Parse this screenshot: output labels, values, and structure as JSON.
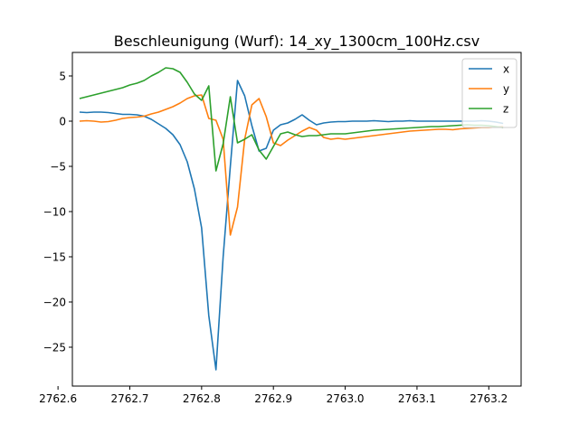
{
  "chart_data": {
    "type": "line",
    "title": "Beschleunigung (Wurf): 14_xy_1300cm_100Hz.csv",
    "xlabel": "",
    "ylabel": "",
    "xlim": [
      2762.62,
      2763.245
    ],
    "ylim": [
      -29.3,
      7.6
    ],
    "grid": false,
    "legend_position": "top-right",
    "x_ticks": [
      2762.6,
      2762.7,
      2762.8,
      2762.9,
      2763.0,
      2763.1,
      2763.2
    ],
    "x_tick_labels": [
      "2762.6",
      "2762.7",
      "2762.8",
      "2762.9",
      "2763.0",
      "2763.1",
      "2763.2"
    ],
    "y_ticks": [
      5,
      0,
      -5,
      -10,
      -15,
      -20,
      -25
    ],
    "y_tick_labels": [
      "5",
      "0",
      "−5",
      "−10",
      "−15",
      "−20",
      "−25"
    ],
    "x": [
      2762.63,
      2762.64,
      2762.65,
      2762.66,
      2762.67,
      2762.68,
      2762.69,
      2762.7,
      2762.71,
      2762.72,
      2762.73,
      2762.74,
      2762.75,
      2762.76,
      2762.77,
      2762.78,
      2762.79,
      2762.8,
      2762.81,
      2762.82,
      2762.83,
      2762.84,
      2762.85,
      2762.86,
      2762.87,
      2762.88,
      2762.89,
      2762.9,
      2762.91,
      2762.92,
      2762.93,
      2762.94,
      2762.95,
      2762.96,
      2762.97,
      2762.98,
      2762.99,
      2763.0,
      2763.01,
      2763.02,
      2763.03,
      2763.04,
      2763.05,
      2763.06,
      2763.07,
      2763.08,
      2763.09,
      2763.1,
      2763.11,
      2763.12,
      2763.13,
      2763.14,
      2763.15,
      2763.16,
      2763.17,
      2763.18,
      2763.19,
      2763.2,
      2763.21,
      2763.22
    ],
    "series": [
      {
        "name": "x",
        "color": "#1f77b4",
        "values": [
          1.0,
          0.95,
          1.0,
          1.0,
          0.95,
          0.85,
          0.75,
          0.75,
          0.7,
          0.55,
          0.2,
          -0.3,
          -0.8,
          -1.5,
          -2.6,
          -4.5,
          -7.5,
          -11.8,
          -21.5,
          -27.5,
          -15.0,
          -5.0,
          4.5,
          2.8,
          -0.5,
          -3.3,
          -3.0,
          -1.0,
          -0.4,
          -0.2,
          0.2,
          0.7,
          0.1,
          -0.4,
          -0.2,
          -0.1,
          -0.05,
          -0.05,
          0.0,
          0.0,
          0.0,
          0.05,
          0.0,
          -0.05,
          0.0,
          0.0,
          0.05,
          0.0,
          0.0,
          0.0,
          0.0,
          0.0,
          0.0,
          0.0,
          0.0,
          0.0,
          0.05,
          0.0,
          -0.1,
          -0.25
        ]
      },
      {
        "name": "y",
        "color": "#ff7f0e",
        "values": [
          0.0,
          0.05,
          0.0,
          -0.1,
          -0.05,
          0.1,
          0.3,
          0.4,
          0.45,
          0.55,
          0.8,
          1.0,
          1.3,
          1.6,
          2.0,
          2.5,
          2.8,
          2.9,
          0.3,
          0.1,
          -2.0,
          -12.6,
          -9.5,
          -2.0,
          1.8,
          2.5,
          0.5,
          -2.4,
          -2.7,
          -2.1,
          -1.6,
          -1.1,
          -0.7,
          -1.0,
          -1.8,
          -2.0,
          -1.9,
          -2.0,
          -1.9,
          -1.8,
          -1.7,
          -1.6,
          -1.5,
          -1.4,
          -1.3,
          -1.2,
          -1.1,
          -1.05,
          -1.0,
          -0.95,
          -0.9,
          -0.9,
          -0.95,
          -0.85,
          -0.8,
          -0.75,
          -0.7,
          -0.7,
          -0.65,
          -0.6
        ]
      },
      {
        "name": "z",
        "color": "#2ca02c",
        "values": [
          2.5,
          2.7,
          2.9,
          3.1,
          3.3,
          3.5,
          3.7,
          4.0,
          4.2,
          4.5,
          5.0,
          5.4,
          5.9,
          5.8,
          5.4,
          4.3,
          3.0,
          2.3,
          3.9,
          -5.5,
          -2.5,
          2.7,
          -2.4,
          -2.0,
          -1.5,
          -3.2,
          -4.2,
          -2.8,
          -1.4,
          -1.2,
          -1.5,
          -1.7,
          -1.6,
          -1.6,
          -1.5,
          -1.4,
          -1.4,
          -1.4,
          -1.3,
          -1.2,
          -1.1,
          -1.0,
          -0.95,
          -0.9,
          -0.85,
          -0.8,
          -0.75,
          -0.7,
          -0.65,
          -0.6,
          -0.6,
          -0.55,
          -0.5,
          -0.45,
          -0.4,
          -0.45,
          -0.45,
          -0.5,
          -0.6,
          -0.7
        ]
      }
    ]
  }
}
